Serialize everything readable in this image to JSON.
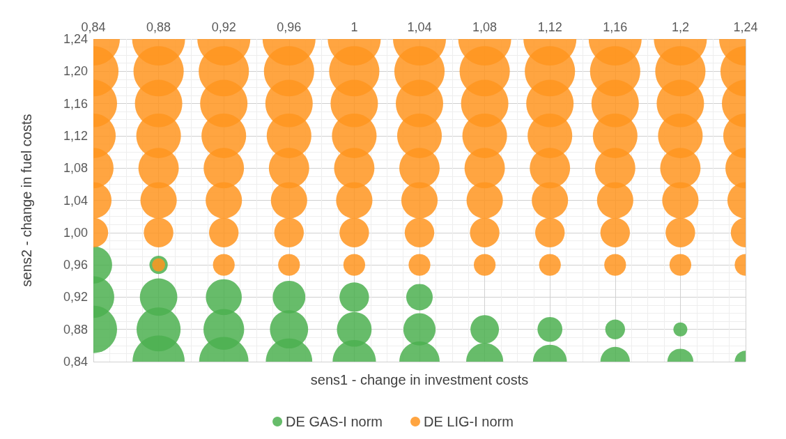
{
  "chart_data": {
    "type": "bubble",
    "xlabel": "sens1 - change in investment costs",
    "ylabel": "sens2 - change in fuel costs",
    "xlim": [
      0.84,
      1.24
    ],
    "ylim": [
      0.84,
      1.24
    ],
    "xticks": [
      {
        "value": 0.84,
        "label": "0,84"
      },
      {
        "value": 0.88,
        "label": "0,88"
      },
      {
        "value": 0.92,
        "label": "0,92"
      },
      {
        "value": 0.96,
        "label": "0,96"
      },
      {
        "value": 1,
        "label": "1"
      },
      {
        "value": 1.04,
        "label": "1,04"
      },
      {
        "value": 1.08,
        "label": "1,08"
      },
      {
        "value": 1.12,
        "label": "1,12"
      },
      {
        "value": 1.16,
        "label": "1,16"
      },
      {
        "value": 1.2,
        "label": "1,2"
      },
      {
        "value": 1.24,
        "label": "1,24"
      }
    ],
    "yticks": [
      {
        "value": 0.84,
        "label": "0,84"
      },
      {
        "value": 0.88,
        "label": "0,88"
      },
      {
        "value": 0.92,
        "label": "0,92"
      },
      {
        "value": 0.96,
        "label": "0,96"
      },
      {
        "value": 1,
        "label": "1,00"
      },
      {
        "value": 1.04,
        "label": "1,04"
      },
      {
        "value": 1.08,
        "label": "1,08"
      },
      {
        "value": 1.12,
        "label": "1,12"
      },
      {
        "value": 1.16,
        "label": "1,16"
      },
      {
        "value": 1.2,
        "label": "1,20"
      },
      {
        "value": 1.24,
        "label": "1,24"
      }
    ],
    "grid": true,
    "legend": "bottom",
    "relative": false,
    "series": [
      {
        "name": "DE GAS-I norm",
        "color": "#4cb050",
        "x": [
          0.84,
          0.84,
          0.84,
          0.88,
          0.88,
          0.88,
          0.88,
          0.92,
          0.92,
          0.92,
          0.96,
          0.96,
          0.96,
          1,
          1,
          1,
          1.04,
          1.04,
          1.04,
          1.08,
          1.08,
          1.12,
          1.12,
          1.16,
          1.16,
          1.2,
          1.2,
          1.24
        ],
        "values": [
          0.96,
          0.92,
          0.88,
          0.96,
          0.92,
          0.88,
          0.84,
          0.92,
          0.88,
          0.84,
          0.92,
          0.88,
          0.84,
          0.92,
          0.88,
          0.84,
          0.92,
          0.88,
          0.84,
          0.88,
          0.84,
          0.88,
          0.84,
          0.88,
          0.84,
          0.88,
          0.84,
          0.84
        ],
        "sizes": [
          0.5,
          0.62,
          0.8,
          0.12,
          0.5,
          0.69,
          0.97,
          0.46,
          0.59,
          0.87,
          0.38,
          0.52,
          0.77,
          0.31,
          0.43,
          0.67,
          0.25,
          0.37,
          0.58,
          0.29,
          0.49,
          0.22,
          0.41,
          0.14,
          0.31,
          0.07,
          0.24,
          0.17
        ]
      },
      {
        "name": "DE LIG-I norm",
        "color": "#ff9520",
        "x": [
          0.84,
          0.88,
          0.92,
          0.96,
          1,
          1.04,
          1.08,
          1.12,
          1.16,
          1.2,
          1.24,
          0.84,
          0.88,
          0.92,
          0.96,
          1,
          1.04,
          1.08,
          1.12,
          1.16,
          1.2,
          1.24,
          0.84,
          0.88,
          0.92,
          0.96,
          1,
          1.04,
          1.08,
          1.12,
          1.16,
          1.2,
          1.24,
          0.84,
          0.88,
          0.92,
          0.96,
          1,
          1.04,
          1.08,
          1.12,
          1.16,
          1.2,
          1.24,
          0.84,
          0.88,
          0.92,
          0.96,
          1,
          1.04,
          1.08,
          1.12,
          1.16,
          1.2,
          1.24,
          0.84,
          0.88,
          0.92,
          0.96,
          1,
          1.04,
          1.08,
          1.12,
          1.16,
          1.2,
          1.24,
          0.84,
          0.88,
          0.92,
          0.96,
          1,
          1.04,
          1.08,
          1.12,
          1.16,
          1.2,
          1.24,
          0.88,
          0.92,
          0.96,
          1,
          1.04,
          1.08,
          1.12,
          1.16,
          1.2,
          1.24
        ],
        "values": [
          1.24,
          1.24,
          1.24,
          1.24,
          1.24,
          1.24,
          1.24,
          1.24,
          1.24,
          1.24,
          1.24,
          1.2,
          1.2,
          1.2,
          1.2,
          1.2,
          1.2,
          1.2,
          1.2,
          1.2,
          1.2,
          1.2,
          1.16,
          1.16,
          1.16,
          1.16,
          1.16,
          1.16,
          1.16,
          1.16,
          1.16,
          1.16,
          1.16,
          1.12,
          1.12,
          1.12,
          1.12,
          1.12,
          1.12,
          1.12,
          1.12,
          1.12,
          1.12,
          1.12,
          1.08,
          1.08,
          1.08,
          1.08,
          1.08,
          1.08,
          1.08,
          1.08,
          1.08,
          1.08,
          1.08,
          1.04,
          1.04,
          1.04,
          1.04,
          1.04,
          1.04,
          1.04,
          1.04,
          1.04,
          1.04,
          1.04,
          1,
          1,
          1,
          1,
          1,
          1,
          1,
          1,
          1,
          1,
          1,
          0.96,
          0.96,
          0.96,
          0.96,
          0.96,
          0.96,
          0.96,
          0.96,
          0.96,
          0.96
        ],
        "sizes": [
          1,
          1,
          1,
          1,
          1,
          1,
          1,
          1,
          1,
          1,
          1,
          0.9,
          0.9,
          0.9,
          0.9,
          0.9,
          0.9,
          0.9,
          0.9,
          0.9,
          0.9,
          0.9,
          0.8,
          0.8,
          0.8,
          0.8,
          0.8,
          0.8,
          0.8,
          0.8,
          0.8,
          0.8,
          0.8,
          0.71,
          0.71,
          0.71,
          0.71,
          0.71,
          0.71,
          0.71,
          0.71,
          0.71,
          0.71,
          0.71,
          0.58,
          0.58,
          0.58,
          0.58,
          0.58,
          0.58,
          0.58,
          0.58,
          0.58,
          0.58,
          0.58,
          0.47,
          0.47,
          0.47,
          0.47,
          0.47,
          0.47,
          0.47,
          0.47,
          0.47,
          0.47,
          0.47,
          0.31,
          0.31,
          0.31,
          0.31,
          0.31,
          0.31,
          0.31,
          0.31,
          0.31,
          0.31,
          0.31,
          0.06,
          0.17,
          0.17,
          0.17,
          0.17,
          0.17,
          0.17,
          0.17,
          0.17,
          0.17
        ]
      }
    ]
  }
}
